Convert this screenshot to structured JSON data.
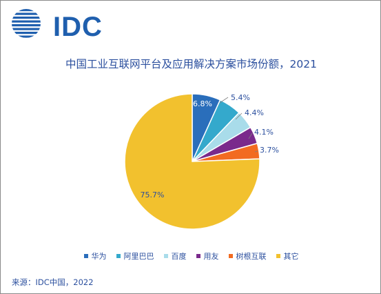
{
  "logo": {
    "text": "IDC"
  },
  "chart_data": {
    "type": "pie",
    "title": "中国工业互联网平台及应用解决方案市场份额，2021",
    "categories": [
      "华为",
      "阿里巴巴",
      "百度",
      "用友",
      "树根互联",
      "其它"
    ],
    "values": [
      6.8,
      5.4,
      4.4,
      4.1,
      3.7,
      75.7
    ],
    "value_labels": [
      "6.8%",
      "5.4%",
      "4.4%",
      "4.1%",
      "3.7%",
      "75.7%"
    ],
    "colors": [
      "#2a6ebb",
      "#34a9cc",
      "#a9dcea",
      "#7a2a8c",
      "#f26b21",
      "#f2c12e"
    ],
    "legend_position": "bottom",
    "start_angle": "12 o'clock",
    "direction": "clockwise"
  },
  "source": "来源：IDC中国，2022"
}
